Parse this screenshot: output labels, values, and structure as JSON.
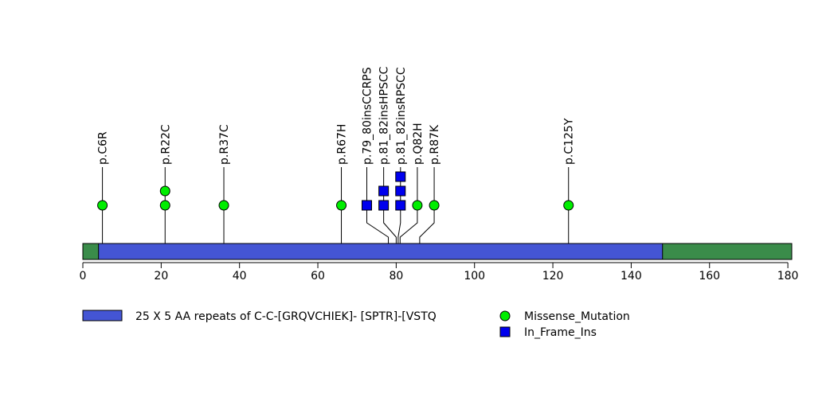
{
  "chart_data": {
    "type": "lollipop",
    "protein_length": 181,
    "xlim": [
      0,
      181
    ],
    "x_ticks": [
      0,
      20,
      40,
      60,
      80,
      100,
      120,
      140,
      160,
      180
    ],
    "x_tick_labels": [
      "0",
      "20",
      "40",
      "60",
      "80",
      "100",
      "120",
      "140",
      "160",
      "180"
    ],
    "backbone_color": "#3a8c4a",
    "domains": [
      {
        "name": "25 X 5 AA repeats of C-C-[GRQVCHIEK]- [SPTR]-[VSTQ",
        "start": 4,
        "end": 148,
        "color": "#4455d4"
      }
    ],
    "mutations": [
      {
        "label": "p.C6R",
        "position": 5,
        "display_position": 5,
        "type": "Missense_Mutation",
        "count": 1
      },
      {
        "label": "p.R22C",
        "position": 21,
        "display_position": 21,
        "type": "Missense_Mutation",
        "count": 2
      },
      {
        "label": "p.R37C",
        "position": 36,
        "display_position": 36,
        "type": "Missense_Mutation",
        "count": 1
      },
      {
        "label": "p.R67H",
        "position": 66,
        "display_position": 66,
        "type": "Missense_Mutation",
        "count": 1
      },
      {
        "label": "p.79_80insCCRPS",
        "position": 78,
        "display_position": 72.5,
        "type": "In_Frame_Ins",
        "count": 1
      },
      {
        "label": "p.81_82insHPSCC",
        "position": 80,
        "display_position": 76.8,
        "type": "In_Frame_Ins",
        "count": 2
      },
      {
        "label": "p.81_82insRPSCC",
        "position": 80.5,
        "display_position": 81.1,
        "type": "In_Frame_Ins",
        "count": 3
      },
      {
        "label": "p.Q82H",
        "position": 81,
        "display_position": 85.4,
        "type": "Missense_Mutation",
        "count": 1
      },
      {
        "label": "p.R87K",
        "position": 86,
        "display_position": 89.7,
        "type": "Missense_Mutation",
        "count": 1
      },
      {
        "label": "p.C125Y",
        "position": 124,
        "display_position": 124,
        "type": "Missense_Mutation",
        "count": 1
      }
    ],
    "legend": {
      "domain_label": "25 X 5 AA repeats of C-C-[GRQVCHIEK]- [SPTR]-[VSTQ",
      "entries": [
        {
          "label": "Missense_Mutation",
          "shape": "circle",
          "color": "#00ee00"
        },
        {
          "label": "In_Frame_Ins",
          "shape": "square",
          "color": "#0000ee"
        }
      ]
    }
  }
}
